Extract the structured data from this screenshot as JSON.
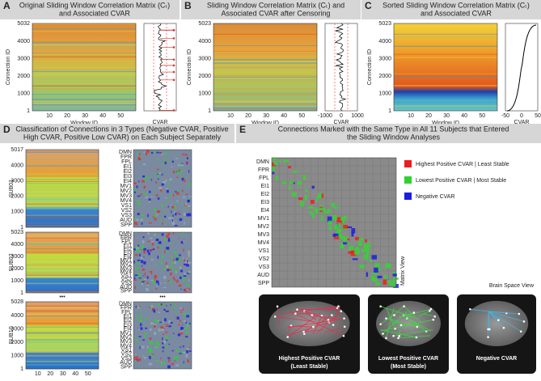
{
  "panel_a": {
    "letter": "A",
    "title_1": "Original Sliding Window Correlation Matrix (Cₜ)",
    "title_2": "and Associated CVAR",
    "y_label": "Connection ID",
    "x_label": "Window ID",
    "cvar_label": "CVAR",
    "yticks": [
      5032,
      4000,
      3000,
      2000,
      1000,
      1
    ],
    "xticks": [
      10,
      20,
      30,
      40,
      50
    ]
  },
  "panel_b": {
    "letter": "B",
    "title_1": "Sliding Window Correlation Matrix (Cₜ) and",
    "title_2": "Associated CVAR after Censoring",
    "y_label": "Connection ID",
    "x_label": "Window ID",
    "cvar_label": "CVAR",
    "yticks": [
      5023,
      4000,
      3000,
      2000,
      1000,
      1
    ],
    "xticks": [
      10,
      20,
      30,
      40,
      50
    ],
    "cvar_ticks": [
      -1000,
      0,
      1000
    ]
  },
  "panel_c": {
    "letter": "C",
    "title_1": "Sorted Sliding Window Correlation Matrix (Cₜ)",
    "title_2": "and Associated CVAR",
    "y_label": "Connection ID",
    "x_label": "Window ID",
    "cvar_label": "CVAR",
    "yticks": [
      5023,
      4000,
      3000,
      2000,
      1000,
      1
    ],
    "xticks": [
      10,
      20,
      30,
      40,
      50
    ],
    "cvar_ticks": [
      -50,
      0,
      50
    ]
  },
  "panel_d": {
    "letter": "D",
    "title_1": "Classification of Connections in 3 Types (Negative CVAR, Positive",
    "title_2": "High CVAR, Positive Low CVAR) on Each Subject Separately",
    "ellipsis": "•••",
    "xticks": [
      10,
      20,
      30,
      40,
      50
    ],
    "subjects": [
      {
        "label": "SUB01",
        "yticks": [
          5017,
          4000,
          3000,
          2000,
          1000,
          1
        ]
      },
      {
        "label": "SUB02",
        "yticks": [
          5023,
          4000,
          3000,
          2000,
          1000,
          1
        ]
      },
      {
        "label": "SUB10",
        "yticks": [
          5028,
          4000,
          3000,
          2000,
          1000,
          1
        ]
      }
    ],
    "networks": [
      "DMN",
      "FPR",
      "FPL",
      "EI1",
      "EI2",
      "EI3",
      "EI4",
      "MV1",
      "MV2",
      "MV3",
      "MV4",
      "VS1",
      "VS2",
      "VS3",
      "AUD",
      "SPP"
    ]
  },
  "panel_e": {
    "letter": "E",
    "title_1": "Connections Marked with the Same Type in All 11 Subjects that Entered",
    "title_2": "the Sliding Window Analyses",
    "networks": [
      "DMN",
      "FPR",
      "FPL",
      "EI1",
      "EI2",
      "EI3",
      "EI4",
      "MV1",
      "MV2",
      "MV3",
      "MV4",
      "VS1",
      "VS2",
      "VS3",
      "AUD",
      "SPP"
    ],
    "legend": [
      {
        "label": "Highest Positive CVAR | Least Stable",
        "color": "#ee1c1c"
      },
      {
        "label": "Lowest Positive CVAR | Most Stable",
        "color": "#2fd12f"
      },
      {
        "label": "Negative CVAR",
        "color": "#1c1ce0"
      }
    ],
    "matrix_label": "Matrix View",
    "brain_label": "Brain Space View",
    "brains": [
      {
        "title": "Highest Positive CVAR",
        "subtitle": "(Least Stable)"
      },
      {
        "title": "Lowest Positive CVAR",
        "subtitle": "(Most Stable)"
      },
      {
        "title": "Negative CVAR"
      }
    ]
  }
}
